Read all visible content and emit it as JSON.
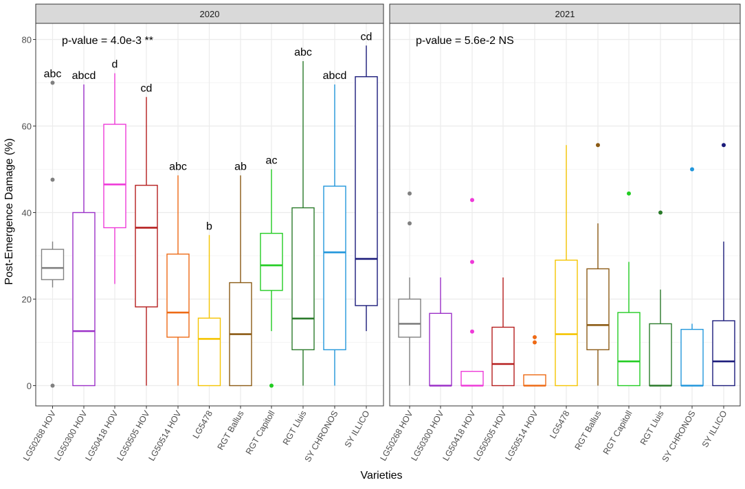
{
  "chart_data": {
    "type": "boxplot",
    "xlabel": "Varieties",
    "ylabel": "Post-Emergence Damage (%)",
    "ylim": [
      -3,
      85
    ],
    "yticks": [
      0,
      20,
      40,
      60,
      80
    ],
    "categories": [
      "LG50268 HOV",
      "LG50300 HOV",
      "LG50418 HOV",
      "LG50505 HOV",
      "LG50514 HOV",
      "LG5478",
      "RGT Ballus",
      "RGT Capitoll",
      "RGT Lluis",
      "SY CHRONOS",
      "SY ILLICO"
    ],
    "colors": [
      "#808080",
      "#9b30c8",
      "#ee3ad8",
      "#b51d1d",
      "#ee6a15",
      "#f5c400",
      "#8b5a14",
      "#22cc22",
      "#2a7a2a",
      "#2196db",
      "#1a1a7a"
    ],
    "panels": [
      {
        "title": "2020",
        "annotation": "p-value =  4.0e-3 **",
        "letters": [
          "abc",
          "abcd",
          "d",
          "cd",
          "abc",
          "b",
          "ab",
          "ac",
          "abc",
          "abcd",
          "cd"
        ],
        "boxes": [
          {
            "lower": 22.7,
            "q1": 24.5,
            "median": 27.2,
            "q3": 31.5,
            "upper": 33.3,
            "outliers": [
              70,
              47.6,
              0
            ]
          },
          {
            "lower": 0,
            "q1": 0,
            "median": 12.6,
            "q3": 40,
            "upper": 69.6,
            "outliers": []
          },
          {
            "lower": 23.5,
            "q1": 36.5,
            "median": 46.5,
            "q3": 60.4,
            "upper": 72.2,
            "outliers": []
          },
          {
            "lower": 0,
            "q1": 18.2,
            "median": 36.5,
            "q3": 46.3,
            "upper": 66.7,
            "outliers": []
          },
          {
            "lower": 0,
            "q1": 11.2,
            "median": 16.9,
            "q3": 30.4,
            "upper": 48.6,
            "outliers": []
          },
          {
            "lower": 0,
            "q1": 0,
            "median": 10.8,
            "q3": 15.6,
            "upper": 34.8,
            "outliers": []
          },
          {
            "lower": 0,
            "q1": 0,
            "median": 11.9,
            "q3": 23.8,
            "upper": 48.6,
            "outliers": []
          },
          {
            "lower": 12.6,
            "q1": 22,
            "median": 27.8,
            "q3": 35.2,
            "upper": 50,
            "outliers": [
              0
            ]
          },
          {
            "lower": 0,
            "q1": 8.3,
            "median": 15.5,
            "q3": 41.1,
            "upper": 75,
            "outliers": []
          },
          {
            "lower": 0,
            "q1": 8.3,
            "median": 30.8,
            "q3": 46.1,
            "upper": 69.6,
            "outliers": []
          },
          {
            "lower": 12.6,
            "q1": 18.5,
            "median": 29.3,
            "q3": 71.4,
            "upper": 78.6,
            "outliers": []
          }
        ]
      },
      {
        "title": "2021",
        "annotation": "p-value =  5.6e-2 NS",
        "letters": [],
        "boxes": [
          {
            "lower": 0,
            "q1": 11.2,
            "median": 14.3,
            "q3": 20,
            "upper": 25,
            "outliers": [
              44.4,
              37.5
            ]
          },
          {
            "lower": 0,
            "q1": 0,
            "median": 0,
            "q3": 16.7,
            "upper": 25,
            "outliers": []
          },
          {
            "lower": 0,
            "q1": 0,
            "median": 0,
            "q3": 3.3,
            "upper": 3.3,
            "outliers": [
              42.9,
              28.6,
              12.5
            ]
          },
          {
            "lower": 0,
            "q1": 0,
            "median": 5,
            "q3": 13.5,
            "upper": 25,
            "outliers": []
          },
          {
            "lower": 0,
            "q1": 0,
            "median": 0,
            "q3": 2.5,
            "upper": 2.5,
            "outliers": [
              11.2,
              10
            ]
          },
          {
            "lower": 0,
            "q1": 0,
            "median": 11.9,
            "q3": 29,
            "upper": 55.6,
            "outliers": []
          },
          {
            "lower": 0,
            "q1": 8.3,
            "median": 14,
            "q3": 27,
            "upper": 37.5,
            "outliers": [
              55.6
            ]
          },
          {
            "lower": 0,
            "q1": 0,
            "median": 5.6,
            "q3": 16.9,
            "upper": 28.6,
            "outliers": [
              44.4
            ]
          },
          {
            "lower": 0,
            "q1": 0,
            "median": 0,
            "q3": 14.3,
            "upper": 22.2,
            "outliers": [
              40
            ]
          },
          {
            "lower": 0,
            "q1": 0,
            "median": 0,
            "q3": 13,
            "upper": 14.3,
            "outliers": [
              50
            ]
          },
          {
            "lower": 0,
            "q1": 0,
            "median": 5.6,
            "q3": 15,
            "upper": 33.3,
            "outliers": [
              55.6
            ]
          }
        ]
      }
    ]
  }
}
